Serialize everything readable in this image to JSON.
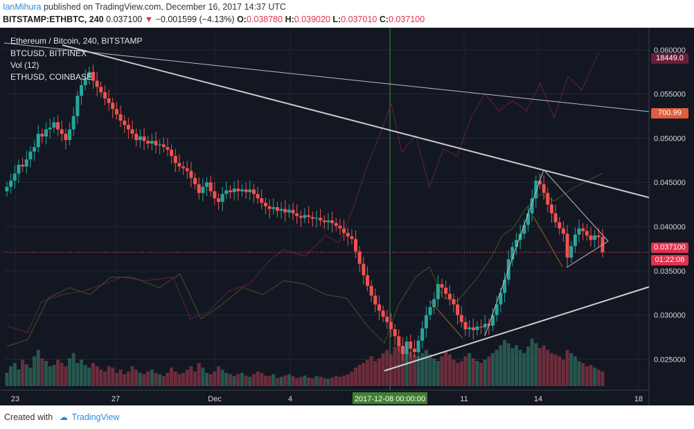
{
  "header": {
    "author": "IanMihura",
    "published_text": "published on TradingView.com, December 16, 2017 14:37 UTC",
    "symbol": "BITSTAMP:ETHBTC, 240",
    "price": "0.037100",
    "change_arrow": "▼",
    "change": "−0.001599 (−4.13%)",
    "o_label": "O:",
    "o_value": "0.038780",
    "h_label": "H:",
    "h_value": "0.039020",
    "l_label": "L:",
    "l_value": "0.037010",
    "c_label": "C:",
    "c_value": "0.037100"
  },
  "legend": {
    "main": "Ethereum / Bitcoin, 240, BITSTAMP",
    "btc": "BTCUSD, BITFINEX",
    "vol": "Vol (12)",
    "eth": "ETHUSD, COINBASE"
  },
  "price_tags": {
    "btc": "18449.0",
    "eth": "700.99",
    "last": "0.037100",
    "countdown": "01:22:08"
  },
  "footer": {
    "created_with": "Created with",
    "brand": "TradingView"
  },
  "colors": {
    "background": "#131722",
    "up": "#26a69a",
    "down": "#ef5350",
    "btc_line": "#5b1f3b",
    "eth_line": "#3e4a1e",
    "trendline": "#c8c8c8",
    "last_price": "#e0314f",
    "crosshair": "#3f8f3f"
  },
  "chart_data": {
    "type": "candlestick",
    "title": "Ethereum / Bitcoin, 240, BITSTAMP",
    "interval": "240",
    "x_ticks": [
      "23",
      "27",
      "Dec",
      "4",
      "2017-12-08 00:00:00",
      "11",
      "14",
      "18"
    ],
    "y_ticks": [
      "0.060000",
      "0.055000",
      "0.050000",
      "0.045000",
      "0.040000",
      "0.035000",
      "0.030000",
      "0.025000"
    ],
    "ylim": [
      0.0215,
      0.0625
    ],
    "last_price": 0.0371,
    "closes": [
      0.0445,
      0.0452,
      0.046,
      0.047,
      0.0468,
      0.0476,
      0.0485,
      0.049,
      0.0505,
      0.0502,
      0.051,
      0.0512,
      0.0518,
      0.051,
      0.0505,
      0.0498,
      0.051,
      0.0525,
      0.0548,
      0.056,
      0.0568,
      0.0575,
      0.0565,
      0.0558,
      0.0552,
      0.0545,
      0.054,
      0.0533,
      0.0527,
      0.052,
      0.0515,
      0.051,
      0.0505,
      0.0498,
      0.0502,
      0.0497,
      0.0494,
      0.0497,
      0.0492,
      0.0493,
      0.049,
      0.0487,
      0.048,
      0.0472,
      0.0468,
      0.0466,
      0.0463,
      0.0455,
      0.0448,
      0.0438,
      0.0445,
      0.045,
      0.044,
      0.0432,
      0.0428,
      0.0437,
      0.0441,
      0.0439,
      0.0443,
      0.044,
      0.0442,
      0.0439,
      0.0442,
      0.0437,
      0.0432,
      0.0427,
      0.0423,
      0.042,
      0.0422,
      0.0418,
      0.042,
      0.0416,
      0.0419,
      0.0415,
      0.0412,
      0.041,
      0.0413,
      0.0411,
      0.0409,
      0.041,
      0.0407,
      0.0405,
      0.0407,
      0.0404,
      0.0401,
      0.0398,
      0.0393,
      0.0389,
      0.0386,
      0.0372,
      0.0358,
      0.0345,
      0.0333,
      0.0322,
      0.0312,
      0.0305,
      0.0298,
      0.0292,
      0.0284,
      0.0276,
      0.0265,
      0.0256,
      0.027,
      0.0262,
      0.0258,
      0.0271,
      0.0285,
      0.03,
      0.0309,
      0.0318,
      0.0335,
      0.0331,
      0.0324,
      0.0318,
      0.0312,
      0.03,
      0.0292,
      0.0284,
      0.0286,
      0.0283,
      0.0287,
      0.0286,
      0.029,
      0.0288,
      0.03,
      0.0312,
      0.0325,
      0.034,
      0.0363,
      0.0377,
      0.0385,
      0.0392,
      0.0402,
      0.0415,
      0.0432,
      0.0452,
      0.0448,
      0.0438,
      0.0425,
      0.0415,
      0.0405,
      0.0398,
      0.0392,
      0.0365,
      0.0378,
      0.0391,
      0.0398,
      0.0395,
      0.039,
      0.0385,
      0.039,
      0.0388,
      0.0371
    ],
    "volumes": [
      0.2,
      0.3,
      0.35,
      0.25,
      0.4,
      0.33,
      0.28,
      0.45,
      0.55,
      0.42,
      0.38,
      0.3,
      0.32,
      0.4,
      0.35,
      0.3,
      0.42,
      0.5,
      0.35,
      0.4,
      0.32,
      0.28,
      0.35,
      0.3,
      0.25,
      0.22,
      0.3,
      0.28,
      0.2,
      0.25,
      0.18,
      0.22,
      0.3,
      0.25,
      0.2,
      0.18,
      0.22,
      0.25,
      0.2,
      0.18,
      0.15,
      0.2,
      0.28,
      0.22,
      0.18,
      0.2,
      0.25,
      0.3,
      0.22,
      0.35,
      0.28,
      0.2,
      0.18,
      0.22,
      0.3,
      0.25,
      0.2,
      0.18,
      0.15,
      0.18,
      0.2,
      0.16,
      0.14,
      0.18,
      0.22,
      0.2,
      0.16,
      0.15,
      0.18,
      0.12,
      0.14,
      0.16,
      0.18,
      0.15,
      0.12,
      0.14,
      0.16,
      0.13,
      0.12,
      0.15,
      0.14,
      0.12,
      0.11,
      0.13,
      0.15,
      0.14,
      0.16,
      0.18,
      0.22,
      0.28,
      0.32,
      0.35,
      0.4,
      0.45,
      0.38,
      0.42,
      0.5,
      0.55,
      0.48,
      0.6,
      0.65,
      0.58,
      0.55,
      0.52,
      0.48,
      0.45,
      0.5,
      0.55,
      0.48,
      0.42,
      0.38,
      0.45,
      0.52,
      0.48,
      0.4,
      0.35,
      0.38,
      0.45,
      0.5,
      0.42,
      0.38,
      0.35,
      0.4,
      0.45,
      0.5,
      0.55,
      0.62,
      0.7,
      0.65,
      0.58,
      0.62,
      0.55,
      0.5,
      0.6,
      0.72,
      0.65,
      0.58,
      0.62,
      0.55,
      0.5,
      0.48,
      0.45,
      0.4,
      0.55,
      0.5,
      0.45,
      0.38,
      0.35,
      0.3,
      0.32,
      0.28,
      0.25,
      0.22
    ]
  }
}
